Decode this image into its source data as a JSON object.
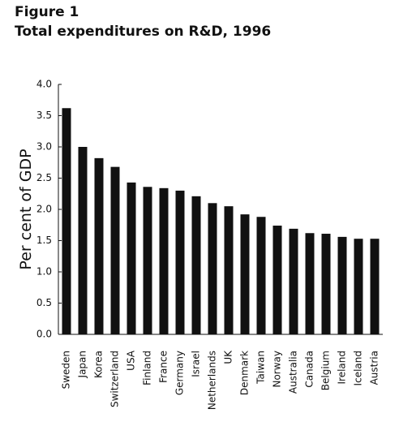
{
  "chart_data": {
    "type": "bar",
    "title": "Figure 1",
    "subtitle": "Total expenditures on R&D, 1996",
    "y_label": "Per cent of GDP",
    "categories": [
      "Sweden",
      "Japan",
      "Korea",
      "Switzerland",
      "USA",
      "Finland",
      "France",
      "Germany",
      "Israel",
      "Netherlands",
      "UK",
      "Denmark",
      "Taiwan",
      "Norway",
      "Australia",
      "Canada",
      "Belgium",
      "Ireland",
      "Iceland",
      "Austria"
    ],
    "values": [
      3.62,
      3.0,
      2.82,
      2.68,
      2.43,
      2.36,
      2.34,
      2.3,
      2.21,
      2.1,
      2.05,
      1.92,
      1.88,
      1.74,
      1.69,
      1.62,
      1.61,
      1.56,
      1.53,
      1.53
    ],
    "color": "#111111",
    "ylim": [
      0,
      4
    ],
    "yticks": [
      {
        "value": 0,
        "label": "0.0"
      },
      0.5,
      {
        "value": 1,
        "label": "1.0"
      },
      1.5,
      {
        "value": 2,
        "label": "2.0"
      },
      2.5,
      {
        "value": 3,
        "label": "3.0"
      },
      3.5,
      {
        "value": 4,
        "label": "4.0"
      }
    ]
  }
}
